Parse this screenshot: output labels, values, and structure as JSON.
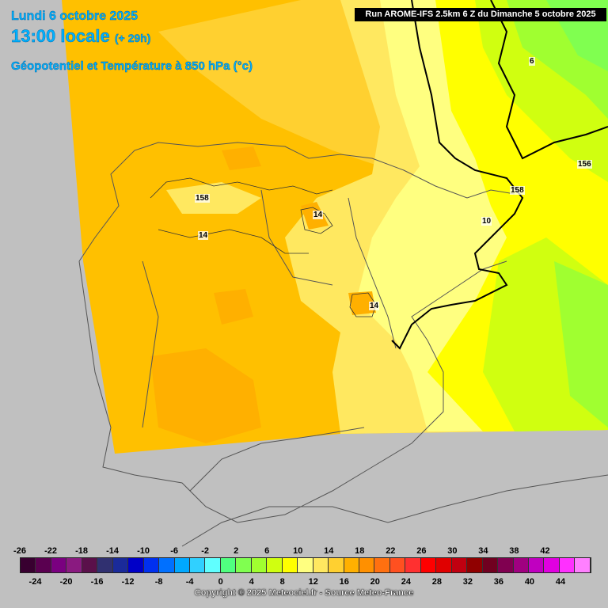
{
  "header": {
    "date": "Lundi 6 octobre 2025",
    "local_time": "13:00 locale",
    "lead": "(+ 29h)",
    "field": "Géopotentiel et Température à 850 hPa (°c)"
  },
  "run_banner": "Run AROME-IFS 2.5km 6 Z du Dimanche 5 octobre 2025",
  "map_labels": [
    "158",
    "14",
    "14",
    "14",
    "6",
    "156",
    "158",
    "10"
  ],
  "legend": {
    "values_top": [
      "-26",
      "-22",
      "-18",
      "-14",
      "-10",
      "-6",
      "-2",
      "2",
      "6",
      "10",
      "14",
      "18",
      "22",
      "26",
      "30",
      "34",
      "38",
      "42"
    ],
    "values_bottom": [
      "-24",
      "-20",
      "-16",
      "-12",
      "-8",
      "-4",
      "0",
      "4",
      "8",
      "12",
      "16",
      "20",
      "24",
      "28",
      "32",
      "36",
      "40",
      "44"
    ],
    "colors": [
      "#380030",
      "#5a0050",
      "#7a0080",
      "#8a1a80",
      "#5a104a",
      "#303070",
      "#1a2a9a",
      "#0000c8",
      "#0030f0",
      "#0070ff",
      "#00a8ff",
      "#30d0ff",
      "#60ffff",
      "#50ff80",
      "#80ff50",
      "#a0ff30",
      "#d0ff10",
      "#ffff00",
      "#ffff80",
      "#ffe860",
      "#ffd030",
      "#ffb000",
      "#ff9000",
      "#ff7010",
      "#ff5020",
      "#ff3030",
      "#ff0000",
      "#e00000",
      "#c00010",
      "#900000",
      "#700020",
      "#800050",
      "#a00080",
      "#c000c0",
      "#e000e0",
      "#ff30ff",
      "#ff80ff"
    ]
  },
  "copyright": "Copyright © 2025 Meteociel.fr - Source Meteo-France"
}
